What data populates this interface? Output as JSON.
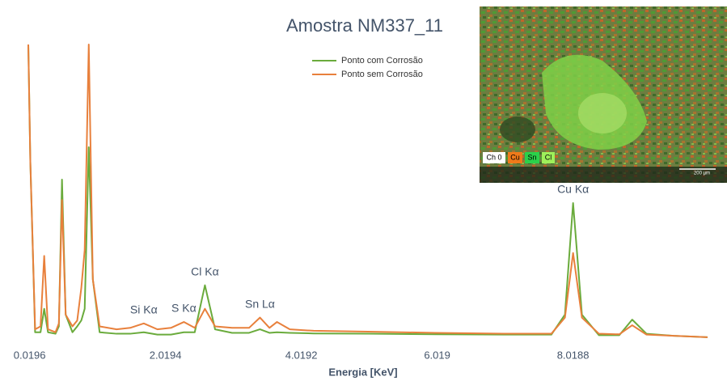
{
  "chart_data": {
    "type": "line",
    "title": "Amostra NM337_11",
    "x_label": "Energia [KeV]",
    "x": [
      0,
      0.03,
      0.1,
      0.18,
      0.234,
      0.29,
      0.4,
      0.45,
      0.496,
      0.55,
      0.65,
      0.72,
      0.78,
      0.83,
      0.89,
      0.95,
      1.05,
      1.3,
      1.5,
      1.7,
      1.9,
      2.1,
      2.29,
      2.45,
      2.6,
      2.75,
      3.0,
      3.25,
      3.41,
      3.55,
      3.66,
      3.85,
      4.2,
      5.0,
      6.0,
      7.0,
      7.7,
      7.9,
      8.02,
      8.15,
      8.4,
      8.7,
      8.89,
      9.1,
      9.5,
      10.0
    ],
    "series": [
      {
        "name": "Ponto com Corrosão",
        "color": "#6aab3c",
        "values": [
          100,
          60,
          2,
          2,
          10,
          2,
          1.5,
          4,
          54,
          8,
          2,
          4,
          6,
          10,
          65,
          20,
          2,
          1.5,
          1.5,
          2,
          1.2,
          1.2,
          2,
          2,
          18,
          3,
          1.8,
          1.8,
          3,
          1.8,
          2,
          1.8,
          1.6,
          1.5,
          1.3,
          1.2,
          1.2,
          8,
          46,
          8,
          1,
          1,
          6.3,
          1.5,
          0.8,
          0.3
        ]
      },
      {
        "name": "Ponto sem Corrosão",
        "color": "#e8803c",
        "values": [
          100,
          60,
          3,
          4,
          28,
          3,
          2,
          5,
          47,
          8,
          4,
          6,
          17,
          30,
          100,
          20,
          4,
          3,
          3.5,
          5,
          3,
          3.5,
          5.5,
          3.5,
          10,
          4,
          3.5,
          3.5,
          7,
          3.5,
          5.5,
          3,
          2.5,
          2.2,
          1.8,
          1.5,
          1.5,
          7,
          29,
          7,
          1.5,
          1.3,
          4.4,
          1.2,
          0.8,
          0.3
        ]
      }
    ],
    "xlim": [
      0,
      10.0
    ],
    "ylim": [
      0,
      100
    ],
    "xticks": [
      0.0196,
      2.0194,
      4.0192,
      6.019,
      8.0188
    ],
    "annotations": [
      {
        "text": "Si Kα",
        "x": 1.7
      },
      {
        "text": "S Kα",
        "x": 2.29
      },
      {
        "text": "Cl Kα",
        "x": 2.6
      },
      {
        "text": "Sn Lα",
        "x": 3.41
      },
      {
        "text": "Cu Kα",
        "x": 8.02
      }
    ],
    "legend": "top-center"
  },
  "inset": {
    "channels": [
      "Ch 0",
      "Cu",
      "Sn",
      "Cl"
    ],
    "scale": "200 µm"
  }
}
